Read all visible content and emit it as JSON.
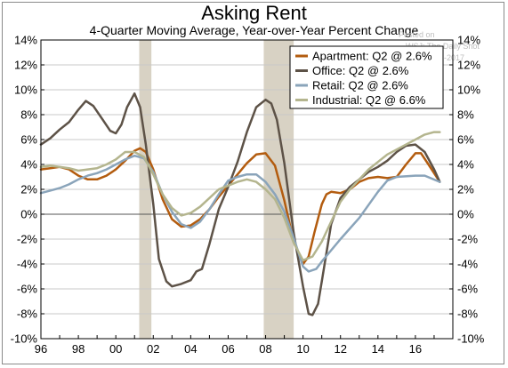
{
  "chart_data": {
    "type": "line",
    "title": "Asking Rent",
    "subtitle": "4-Quarter Moving Average, Year-over-Year Percent Change",
    "xlim": [
      1996,
      2018
    ],
    "ylim": [
      -10,
      14
    ],
    "ytick_values": [
      -10,
      -8,
      -6,
      -4,
      -2,
      0,
      2,
      4,
      6,
      8,
      10,
      12,
      14
    ],
    "ytick_labels": [
      "-10%",
      "-8%",
      "-6%",
      "-4%",
      "-2%",
      "0%",
      "2%",
      "4%",
      "6%",
      "8%",
      "10%",
      "12%",
      "14%"
    ],
    "xtick_values": [
      1996,
      1998,
      2000,
      2002,
      2004,
      2006,
      2008,
      2010,
      2012,
      2014,
      2016
    ],
    "xtick_labels": [
      "96",
      "98",
      "00",
      "02",
      "04",
      "06",
      "08",
      "10",
      "12",
      "14",
      "16"
    ],
    "grid": "horizontal",
    "legend_position": "top-right",
    "recessions": [
      [
        2001.25,
        2001.9
      ],
      [
        2007.9,
        2009.5
      ]
    ],
    "series": [
      {
        "name": "Apartment: Q2 @ 2.6%",
        "color": "#b35c0f",
        "points": [
          [
            1996,
            3.6
          ],
          [
            1996.5,
            3.7
          ],
          [
            1997,
            3.8
          ],
          [
            1997.5,
            3.6
          ],
          [
            1998,
            3.1
          ],
          [
            1998.5,
            2.8
          ],
          [
            1999,
            2.8
          ],
          [
            1999.5,
            3.1
          ],
          [
            2000,
            3.6
          ],
          [
            2000.5,
            4.3
          ],
          [
            2001,
            5.1
          ],
          [
            2001.3,
            5.3
          ],
          [
            2001.6,
            5.0
          ],
          [
            2002,
            3.6
          ],
          [
            2002.5,
            1.2
          ],
          [
            2003,
            -0.4
          ],
          [
            2003.5,
            -1.0
          ],
          [
            2004,
            -0.9
          ],
          [
            2004.5,
            -0.4
          ],
          [
            2005,
            0.4
          ],
          [
            2005.5,
            1.4
          ],
          [
            2006,
            2.3
          ],
          [
            2006.5,
            3.2
          ],
          [
            2007,
            4.1
          ],
          [
            2007.5,
            4.8
          ],
          [
            2008,
            4.9
          ],
          [
            2008.5,
            3.9
          ],
          [
            2009,
            1.1
          ],
          [
            2009.5,
            -2.2
          ],
          [
            2010,
            -4.0
          ],
          [
            2010.3,
            -3.4
          ],
          [
            2010.6,
            -1.5
          ],
          [
            2011,
            0.8
          ],
          [
            2011.25,
            1.6
          ],
          [
            2011.5,
            1.8
          ],
          [
            2012,
            1.7
          ],
          [
            2012.5,
            2.0
          ],
          [
            2013,
            2.6
          ],
          [
            2013.5,
            2.9
          ],
          [
            2014,
            3.0
          ],
          [
            2014.5,
            2.9
          ],
          [
            2015,
            3.0
          ],
          [
            2015.5,
            4.0
          ],
          [
            2016,
            4.9
          ],
          [
            2016.3,
            4.9
          ],
          [
            2016.7,
            4.0
          ],
          [
            2017.3,
            2.6
          ]
        ]
      },
      {
        "name": "Office: Q2 @ 2.6%",
        "color": "#5d5247",
        "points": [
          [
            1996,
            5.6
          ],
          [
            1996.5,
            6.1
          ],
          [
            1997,
            6.8
          ],
          [
            1997.5,
            7.4
          ],
          [
            1998,
            8.4
          ],
          [
            1998.4,
            9.1
          ],
          [
            1998.8,
            8.7
          ],
          [
            1999.3,
            7.6
          ],
          [
            1999.7,
            6.7
          ],
          [
            2000,
            6.5
          ],
          [
            2000.3,
            7.2
          ],
          [
            2000.6,
            8.6
          ],
          [
            2001,
            9.7
          ],
          [
            2001.3,
            8.6
          ],
          [
            2001.6,
            5.6
          ],
          [
            2002,
            0.8
          ],
          [
            2002.3,
            -3.6
          ],
          [
            2002.7,
            -5.4
          ],
          [
            2003,
            -5.8
          ],
          [
            2003.5,
            -5.6
          ],
          [
            2004,
            -5.3
          ],
          [
            2004.3,
            -4.6
          ],
          [
            2004.6,
            -4.4
          ],
          [
            2005,
            -2.4
          ],
          [
            2005.5,
            0.4
          ],
          [
            2006,
            2.2
          ],
          [
            2006.5,
            4.2
          ],
          [
            2007,
            6.6
          ],
          [
            2007.5,
            8.6
          ],
          [
            2008,
            9.2
          ],
          [
            2008.3,
            8.9
          ],
          [
            2008.6,
            7.6
          ],
          [
            2009,
            4.1
          ],
          [
            2009.5,
            -1.5
          ],
          [
            2010,
            -5.8
          ],
          [
            2010.3,
            -8.0
          ],
          [
            2010.5,
            -8.1
          ],
          [
            2010.8,
            -7.2
          ],
          [
            2011,
            -5.4
          ],
          [
            2011.5,
            -0.8
          ],
          [
            2012,
            1.3
          ],
          [
            2012.5,
            2.2
          ],
          [
            2013,
            2.8
          ],
          [
            2013.5,
            3.4
          ],
          [
            2014,
            3.8
          ],
          [
            2014.5,
            4.3
          ],
          [
            2015,
            5.0
          ],
          [
            2015.5,
            5.5
          ],
          [
            2016,
            5.6
          ],
          [
            2016.5,
            5.0
          ],
          [
            2017,
            3.6
          ],
          [
            2017.3,
            2.6
          ]
        ]
      },
      {
        "name": "Retail: Q2 @ 2.6%",
        "color": "#8aa4ba",
        "points": [
          [
            1996,
            1.7
          ],
          [
            1996.5,
            1.9
          ],
          [
            1997,
            2.1
          ],
          [
            1997.5,
            2.4
          ],
          [
            1998,
            2.8
          ],
          [
            1998.5,
            3.1
          ],
          [
            1999,
            3.3
          ],
          [
            1999.5,
            3.6
          ],
          [
            2000,
            4.0
          ],
          [
            2000.5,
            4.4
          ],
          [
            2001,
            4.7
          ],
          [
            2001.5,
            4.5
          ],
          [
            2002,
            3.4
          ],
          [
            2002.5,
            1.6
          ],
          [
            2003,
            0.2
          ],
          [
            2003.5,
            -0.8
          ],
          [
            2004,
            -1.1
          ],
          [
            2004.5,
            -0.6
          ],
          [
            2005,
            0.4
          ],
          [
            2005.5,
            1.6
          ],
          [
            2006,
            2.7
          ],
          [
            2006.5,
            3.0
          ],
          [
            2007,
            3.2
          ],
          [
            2007.5,
            3.2
          ],
          [
            2008,
            2.6
          ],
          [
            2008.5,
            1.6
          ],
          [
            2009,
            0.2
          ],
          [
            2009.5,
            -1.9
          ],
          [
            2010,
            -4.2
          ],
          [
            2010.3,
            -4.6
          ],
          [
            2010.7,
            -4.4
          ],
          [
            2011,
            -3.8
          ],
          [
            2012,
            -2.0
          ],
          [
            2013,
            -0.3
          ],
          [
            2014,
            1.8
          ],
          [
            2014.5,
            2.7
          ],
          [
            2015,
            3.0
          ],
          [
            2016,
            3.1
          ],
          [
            2016.5,
            3.1
          ],
          [
            2017.3,
            2.6
          ]
        ]
      },
      {
        "name": "Industrial: Q2 @ 6.6%",
        "color": "#b4b58e",
        "points": [
          [
            1996,
            3.8
          ],
          [
            1996.5,
            3.9
          ],
          [
            1997,
            3.8
          ],
          [
            1997.5,
            3.7
          ],
          [
            1998,
            3.5
          ],
          [
            1998.5,
            3.6
          ],
          [
            1999,
            3.7
          ],
          [
            1999.5,
            4.0
          ],
          [
            2000,
            4.4
          ],
          [
            2000.5,
            5.0
          ],
          [
            2001,
            5.0
          ],
          [
            2001.5,
            4.6
          ],
          [
            2002,
            3.2
          ],
          [
            2002.5,
            1.6
          ],
          [
            2003,
            0.5
          ],
          [
            2003.5,
            -0.1
          ],
          [
            2004,
            0.1
          ],
          [
            2004.5,
            0.6
          ],
          [
            2005,
            1.3
          ],
          [
            2005.5,
            2.0
          ],
          [
            2006,
            2.3
          ],
          [
            2006.5,
            2.6
          ],
          [
            2007,
            2.8
          ],
          [
            2007.5,
            2.6
          ],
          [
            2008,
            2.0
          ],
          [
            2008.5,
            1.2
          ],
          [
            2009,
            -0.3
          ],
          [
            2009.5,
            -2.3
          ],
          [
            2010,
            -3.7
          ],
          [
            2010.5,
            -3.4
          ],
          [
            2011,
            -2.2
          ],
          [
            2011.5,
            -0.6
          ],
          [
            2012,
            1.0
          ],
          [
            2012.5,
            2.0
          ],
          [
            2013,
            2.8
          ],
          [
            2013.5,
            3.6
          ],
          [
            2014,
            4.2
          ],
          [
            2014.5,
            4.8
          ],
          [
            2015,
            5.2
          ],
          [
            2015.5,
            5.6
          ],
          [
            2016,
            6.0
          ],
          [
            2016.5,
            6.4
          ],
          [
            2017,
            6.6
          ],
          [
            2017.3,
            6.6
          ]
        ]
      }
    ]
  },
  "watermark": {
    "line1": "Posted on",
    "line2": "WSJ: The Daily Shot",
    "line3": "17-Aug-2017"
  },
  "colors": {
    "recession_band": "#d8d2c4",
    "grid": "#c8c8c8",
    "axis": "#000000"
  }
}
